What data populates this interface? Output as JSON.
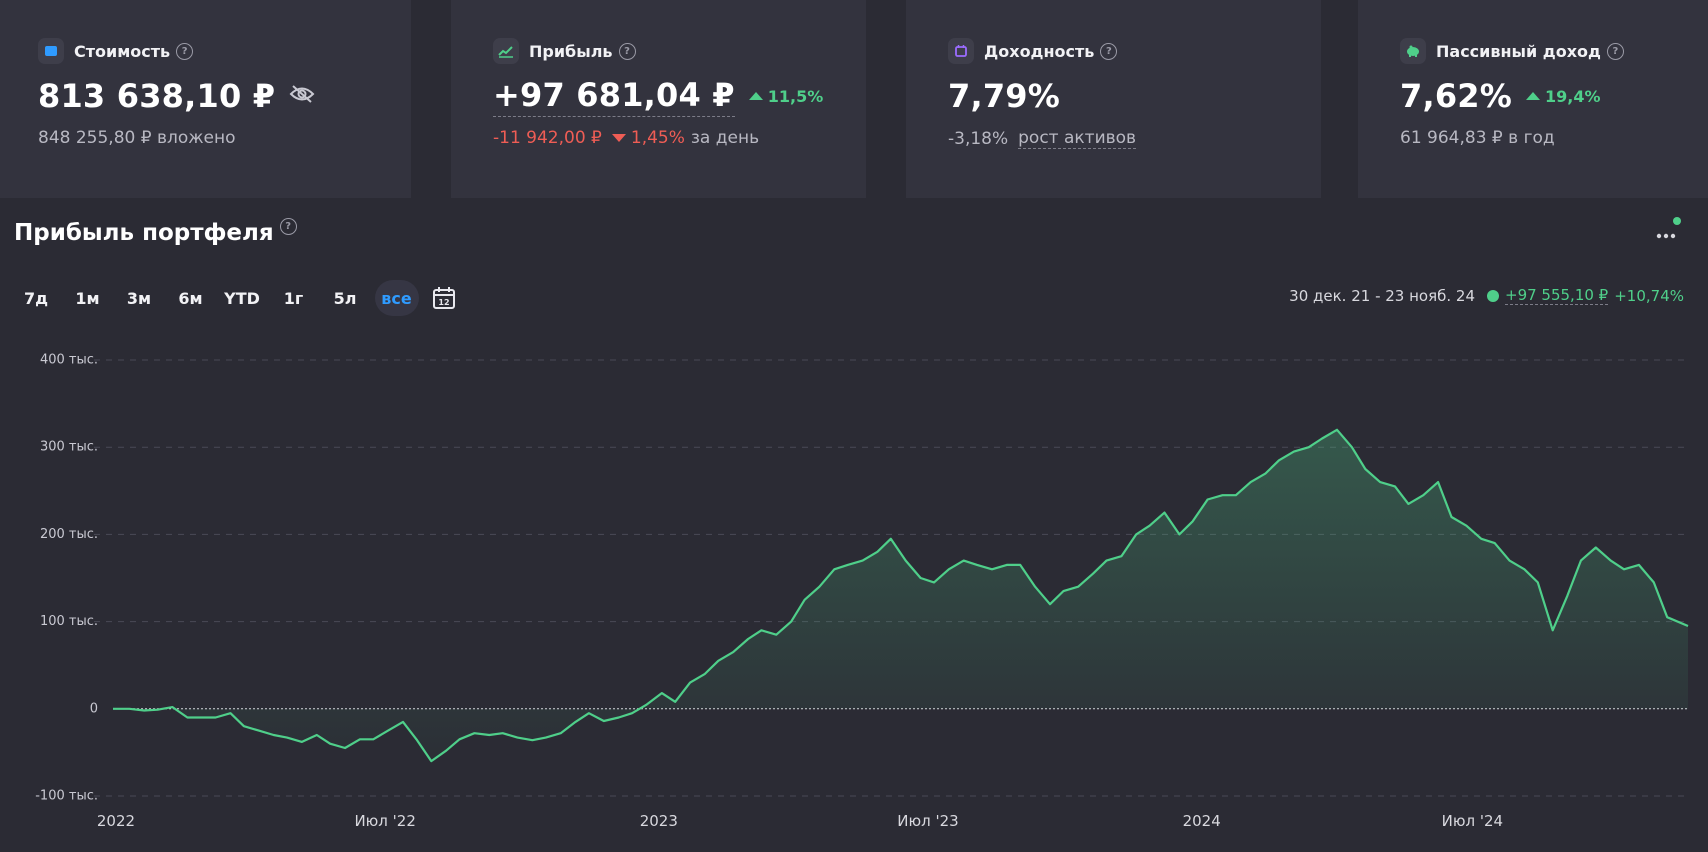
{
  "cards": [
    {
      "title": "Стоимость",
      "value": "813 638,10 ₽",
      "sub": "848 255,80 ₽ вложено",
      "icon": "wallet-icon",
      "icon_color": "#2f9bff"
    },
    {
      "title": "Прибыль",
      "value": "+97 681,04 ₽",
      "delta": "11,5%",
      "day_change": "-11 942,00 ₽",
      "day_pct": "1,45%",
      "day_label": "за день",
      "icon": "chart-up-icon",
      "icon_color": "#4fcf8a"
    },
    {
      "title": "Доходность",
      "value": "7,79%",
      "sub_value": "-3,18%",
      "sub_label": "рост активов",
      "icon": "calendar-icon",
      "icon_color": "#9b6cff"
    },
    {
      "title": "Пассивный доход",
      "value": "7,62%",
      "delta": "19,4%",
      "sub": "61 964,83 ₽ в год",
      "icon": "piggy-bank-icon",
      "icon_color": "#4fcf8a"
    }
  ],
  "section": {
    "title": "Прибыль портфеля"
  },
  "periods": [
    "7д",
    "1м",
    "3м",
    "6м",
    "YTD",
    "1г",
    "5л",
    "все"
  ],
  "active_period": "все",
  "range": {
    "label": "30 дек. 21 - 23 нояб. 24",
    "delta": "+97 555,10 ₽",
    "pct": "+10,74%"
  },
  "colors": {
    "accent": "#2f9bff",
    "positive": "#4fcf8a",
    "negative": "#ef5d55",
    "background": "#2b2b34",
    "card": "#33333e"
  },
  "chart_data": {
    "type": "area",
    "title": "",
    "xlabel": "",
    "ylabel": "",
    "ylim": [
      -100000,
      400000
    ],
    "grid": true,
    "y_ticks": [
      {
        "value": 400000,
        "label": "400 тыс."
      },
      {
        "value": 300000,
        "label": "300 тыс."
      },
      {
        "value": 200000,
        "label": "200 тыс."
      },
      {
        "value": 100000,
        "label": "100 тыс."
      },
      {
        "value": 0,
        "label": "0"
      },
      {
        "value": -100000,
        "label": "-100 тыс."
      }
    ],
    "x_ticks": [
      {
        "date": "2022-01-01",
        "label": "2022"
      },
      {
        "date": "2022-07-01",
        "label": "Июл '22"
      },
      {
        "date": "2023-01-01",
        "label": "2023"
      },
      {
        "date": "2023-07-01",
        "label": "Июл '23"
      },
      {
        "date": "2024-01-01",
        "label": "2024"
      },
      {
        "date": "2024-07-01",
        "label": "Июл '24"
      }
    ],
    "x": [
      "2021-12-30",
      "2022-01-10",
      "2022-01-20",
      "2022-01-29",
      "2022-02-08",
      "2022-02-18",
      "2022-02-27",
      "2022-03-09",
      "2022-03-19",
      "2022-03-28",
      "2022-04-07",
      "2022-04-17",
      "2022-04-26",
      "2022-05-06",
      "2022-05-16",
      "2022-05-25",
      "2022-06-04",
      "2022-06-14",
      "2022-06-23",
      "2022-07-03",
      "2022-07-13",
      "2022-07-22",
      "2022-08-01",
      "2022-08-11",
      "2022-08-20",
      "2022-08-30",
      "2022-09-09",
      "2022-09-18",
      "2022-09-28",
      "2022-10-08",
      "2022-10-17",
      "2022-10-27",
      "2022-11-06",
      "2022-11-15",
      "2022-11-25",
      "2022-12-05",
      "2022-12-14",
      "2022-12-24",
      "2023-01-03",
      "2023-01-12",
      "2023-01-22",
      "2023-02-01",
      "2023-02-10",
      "2023-02-20",
      "2023-03-02",
      "2023-03-11",
      "2023-03-21",
      "2023-03-31",
      "2023-04-09",
      "2023-04-19",
      "2023-04-29",
      "2023-05-08",
      "2023-05-18",
      "2023-05-28",
      "2023-06-06",
      "2023-06-16",
      "2023-06-26",
      "2023-07-05",
      "2023-07-15",
      "2023-07-25",
      "2023-08-03",
      "2023-08-13",
      "2023-08-23",
      "2023-09-01",
      "2023-09-11",
      "2023-09-21",
      "2023-09-30",
      "2023-10-10",
      "2023-10-20",
      "2023-10-29",
      "2023-11-08",
      "2023-11-18",
      "2023-11-27",
      "2023-12-07",
      "2023-12-17",
      "2023-12-26",
      "2024-01-05",
      "2024-01-15",
      "2024-01-24",
      "2024-02-03",
      "2024-02-13",
      "2024-02-22",
      "2024-03-03",
      "2024-03-13",
      "2024-03-22",
      "2024-04-01",
      "2024-04-11",
      "2024-04-20",
      "2024-04-30",
      "2024-05-10",
      "2024-05-19",
      "2024-05-29",
      "2024-06-08",
      "2024-06-17",
      "2024-06-27",
      "2024-07-07",
      "2024-07-16",
      "2024-07-26",
      "2024-08-05",
      "2024-08-14",
      "2024-08-24",
      "2024-09-03",
      "2024-09-12",
      "2024-09-22",
      "2024-10-02",
      "2024-10-11",
      "2024-10-21",
      "2024-10-31",
      "2024-11-09",
      "2024-11-23"
    ],
    "series": [
      {
        "color": "#4fcf8a",
        "values": [
          0,
          0,
          -2000,
          -1000,
          2000,
          -10000,
          -10000,
          -10000,
          -5000,
          -20000,
          -25000,
          -30000,
          -33000,
          -38000,
          -30000,
          -40000,
          -45000,
          -35000,
          -35000,
          -25000,
          -15000,
          -35000,
          -60000,
          -48000,
          -35000,
          -28000,
          -30000,
          -28000,
          -33000,
          -36000,
          -33000,
          -28000,
          -15000,
          -5000,
          -14000,
          -10000,
          -5000,
          5000,
          18000,
          8000,
          30000,
          40000,
          55000,
          65000,
          80000,
          90000,
          85000,
          100000,
          125000,
          140000,
          160000,
          165000,
          170000,
          180000,
          195000,
          170000,
          150000,
          145000,
          160000,
          170000,
          165000,
          160000,
          165000,
          165000,
          140000,
          120000,
          135000,
          140000,
          155000,
          170000,
          175000,
          200000,
          210000,
          225000,
          200000,
          215000,
          240000,
          245000,
          245000,
          260000,
          270000,
          285000,
          295000,
          300000,
          310000,
          320000,
          300000,
          275000,
          260000,
          255000,
          235000,
          245000,
          260000,
          220000,
          210000,
          195000,
          190000,
          170000,
          160000,
          145000,
          90000,
          130000,
          170000,
          185000,
          170000,
          160000,
          165000,
          145000,
          105000,
          95000
        ]
      }
    ]
  }
}
